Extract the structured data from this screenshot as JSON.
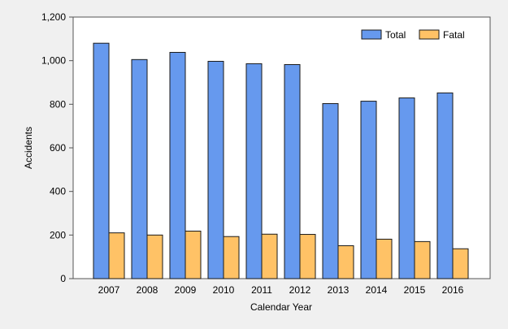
{
  "chart_data": {
    "type": "bar",
    "title": "",
    "xlabel": "Calendar Year",
    "ylabel": "Accidents",
    "categories": [
      "2007",
      "2008",
      "2009",
      "2010",
      "2011",
      "2012",
      "2013",
      "2014",
      "2015",
      "2016"
    ],
    "series": [
      {
        "name": "Total",
        "color": "#6699ee",
        "values": [
          1080,
          1005,
          1038,
          997,
          986,
          982,
          803,
          814,
          829,
          852
        ]
      },
      {
        "name": "Fatal",
        "color": "#ffc266",
        "values": [
          210,
          200,
          218,
          193,
          204,
          203,
          151,
          181,
          170,
          137
        ]
      }
    ],
    "ylim": [
      0,
      1200
    ],
    "yticks": [
      0,
      200,
      400,
      600,
      800,
      1000,
      1200
    ],
    "ytick_labels": [
      "0",
      "200",
      "400",
      "600",
      "800",
      "1,000",
      "1,200"
    ],
    "grid": false,
    "legend_position": "top-right",
    "plot_background": "#ffffff"
  }
}
